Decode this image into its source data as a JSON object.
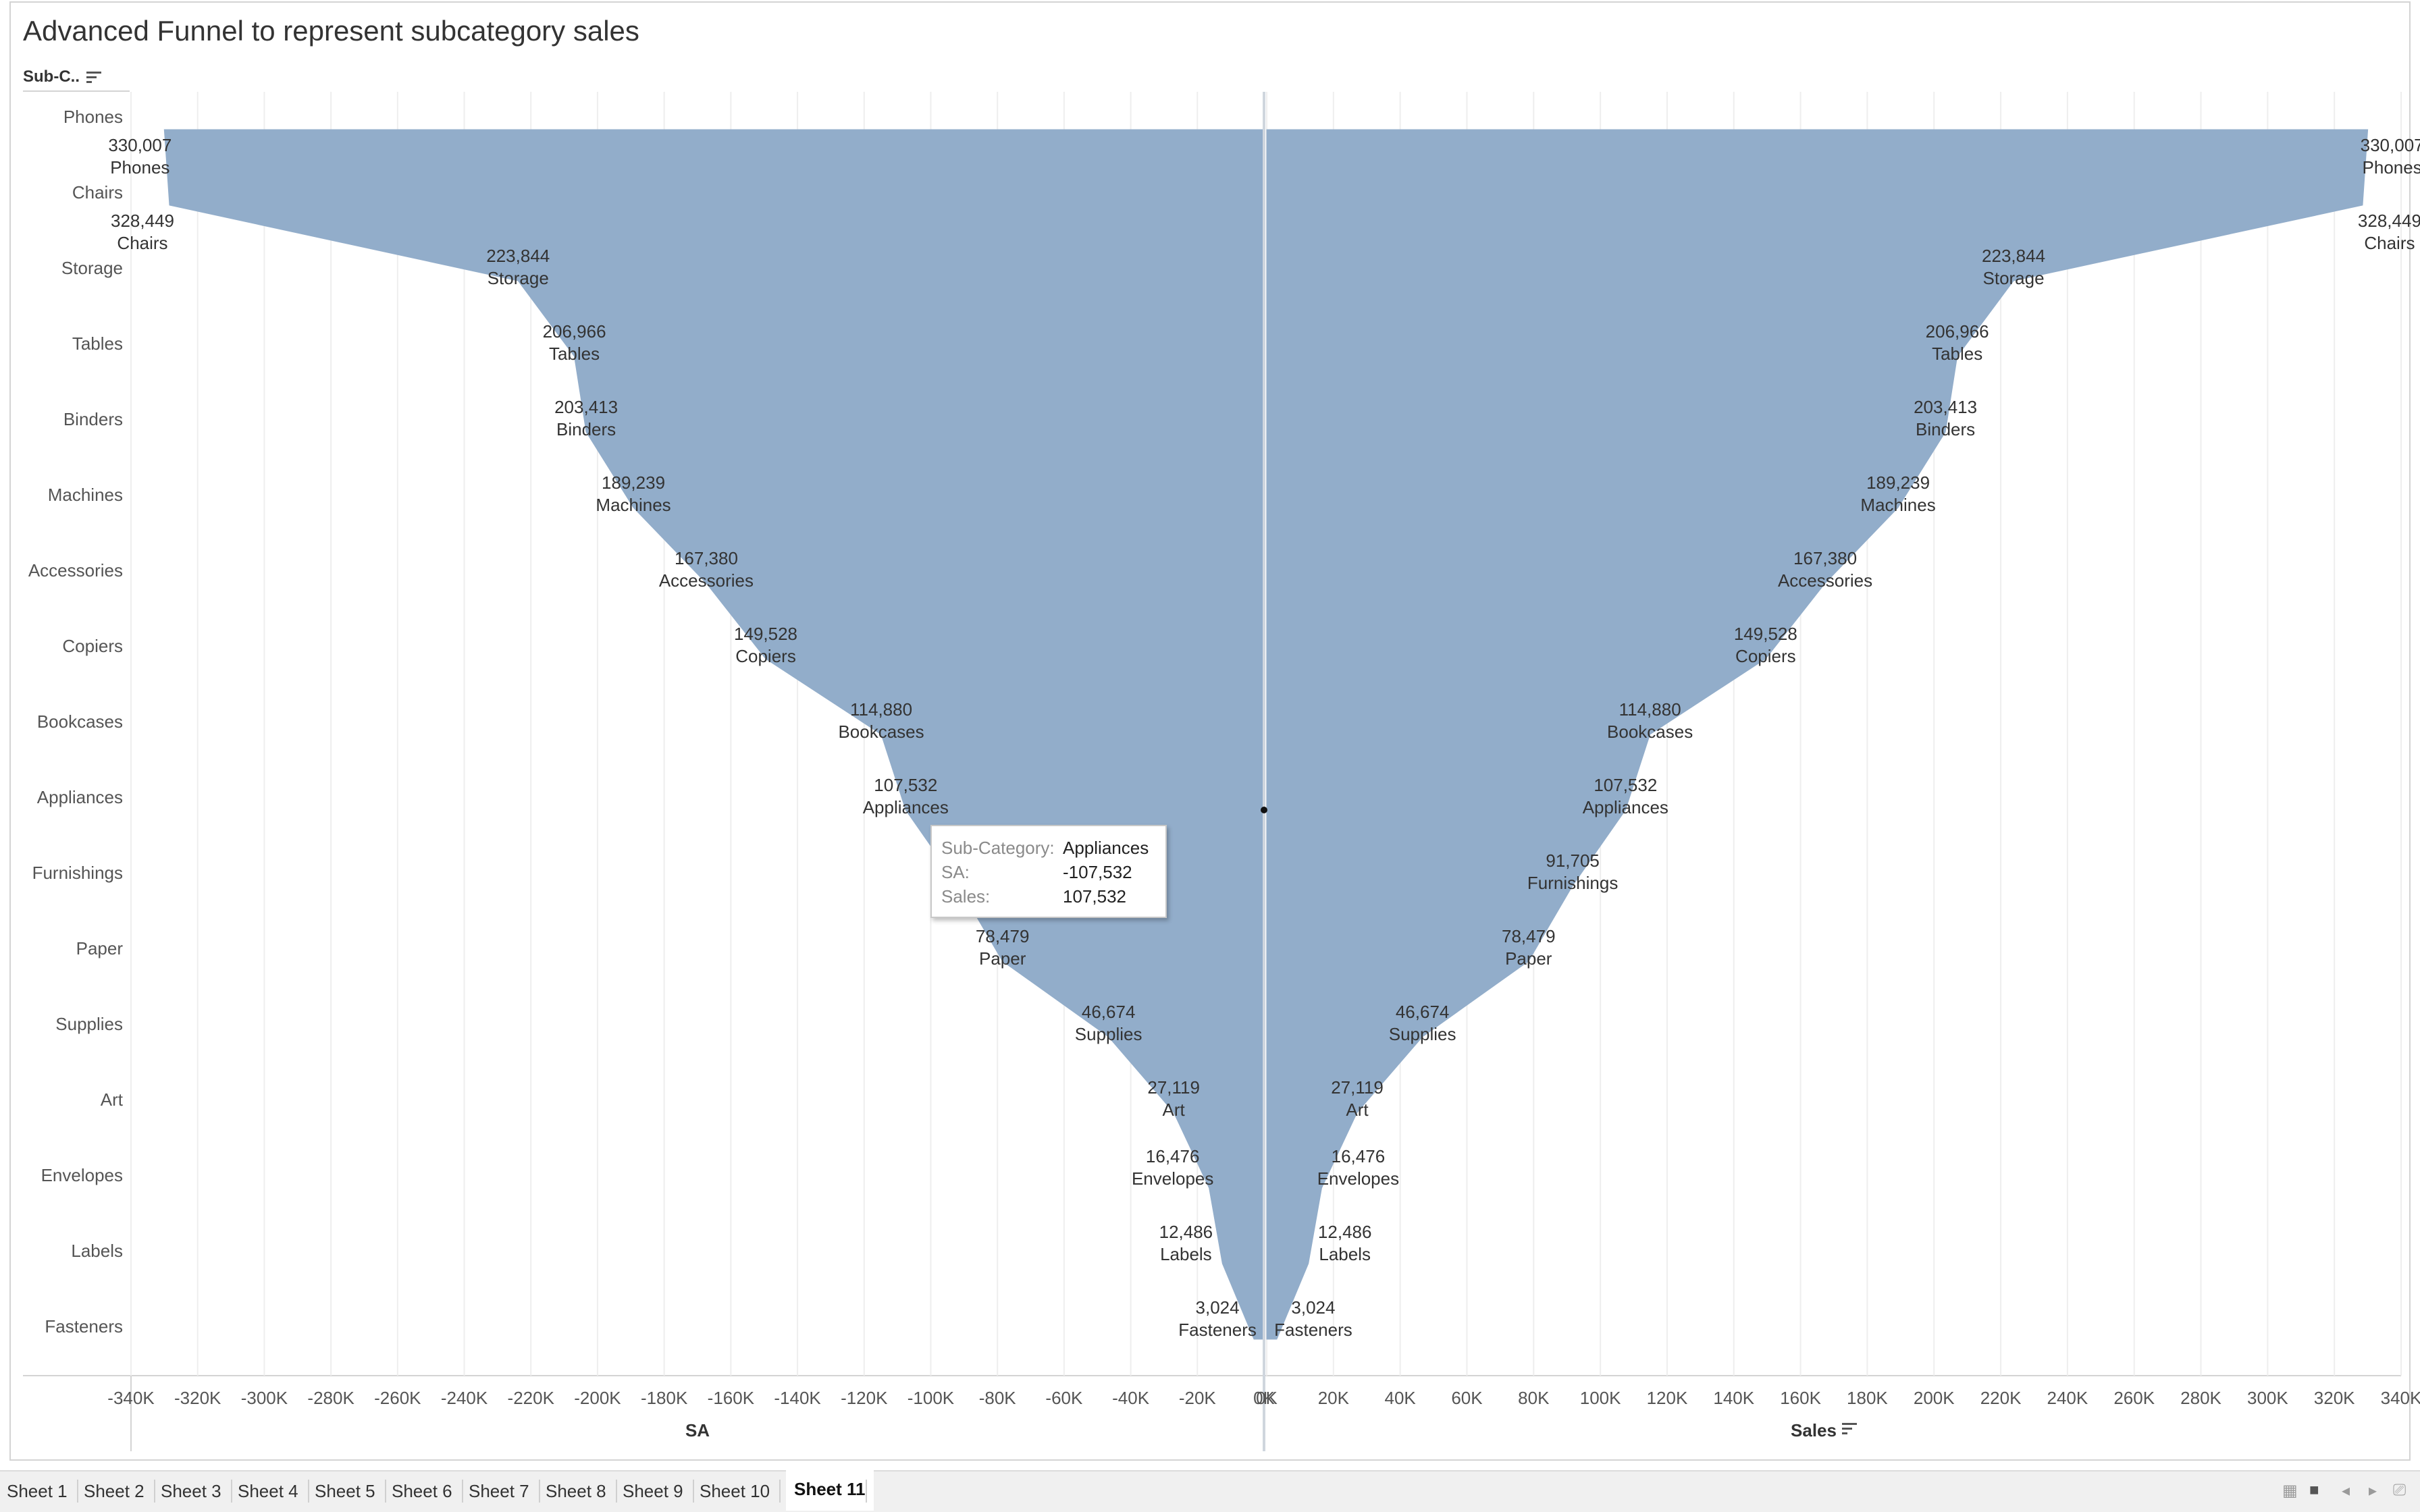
{
  "title": "Advanced Funnel to represent subcategory sales",
  "row_header": {
    "label": "Sub-C.."
  },
  "chart_data": {
    "type": "area",
    "title": "Advanced Funnel to represent subcategory sales",
    "categories": [
      "Phones",
      "Chairs",
      "Storage",
      "Tables",
      "Binders",
      "Machines",
      "Accessories",
      "Copiers",
      "Bookcases",
      "Appliances",
      "Furnishings",
      "Paper",
      "Supplies",
      "Art",
      "Envelopes",
      "Labels",
      "Fasteners"
    ],
    "series": [
      {
        "name": "SA",
        "values": [
          -330007,
          -328449,
          -223844,
          -206966,
          -203413,
          -189239,
          -167380,
          -149528,
          -114880,
          -107532,
          -91705,
          -78479,
          -46674,
          -27119,
          -16476,
          -12486,
          -3024
        ]
      },
      {
        "name": "Sales",
        "values": [
          330007,
          328449,
          223844,
          206966,
          203413,
          189239,
          167380,
          149528,
          114880,
          107532,
          91705,
          78479,
          46674,
          27119,
          16476,
          12486,
          3024
        ]
      }
    ],
    "value_labels": [
      "330,007",
      "328,449",
      "223,844",
      "206,966",
      "203,413",
      "189,239",
      "167,380",
      "149,528",
      "114,880",
      "107,532",
      "91,705",
      "78,479",
      "46,674",
      "27,119",
      "16,476",
      "12,486",
      "3,024"
    ],
    "left_labels_shown": [
      true,
      true,
      true,
      true,
      true,
      true,
      true,
      true,
      true,
      true,
      false,
      true,
      true,
      true,
      true,
      true,
      true
    ],
    "left_axis": {
      "label": "SA",
      "range": [
        -340000,
        0
      ],
      "ticks": [
        "-340K",
        "-320K",
        "-300K",
        "-280K",
        "-260K",
        "-240K",
        "-220K",
        "-200K",
        "-180K",
        "-160K",
        "-140K",
        "-120K",
        "-100K",
        "-80K",
        "-60K",
        "-40K",
        "-20K",
        "0K"
      ]
    },
    "right_axis": {
      "label": "Sales",
      "range": [
        0,
        340000
      ],
      "ticks": [
        "0K",
        "20K",
        "40K",
        "60K",
        "80K",
        "100K",
        "120K",
        "140K",
        "160K",
        "180K",
        "200K",
        "220K",
        "240K",
        "260K",
        "280K",
        "300K",
        "320K",
        "340K"
      ]
    },
    "grid": true,
    "color": "#92adca"
  },
  "tooltip": {
    "rows": [
      {
        "key": "Sub-Category:",
        "value": "Appliances"
      },
      {
        "key": "SA:",
        "value": "-107,532"
      },
      {
        "key": "Sales:",
        "value": "107,532"
      }
    ]
  },
  "tabs": [
    "Sheet 1",
    "Sheet 2",
    "Sheet 3",
    "Sheet 4",
    "Sheet 5",
    "Sheet 6",
    "Sheet 7",
    "Sheet 8",
    "Sheet 9",
    "Sheet 10",
    "Sheet 11"
  ],
  "active_tab": "Sheet 11"
}
